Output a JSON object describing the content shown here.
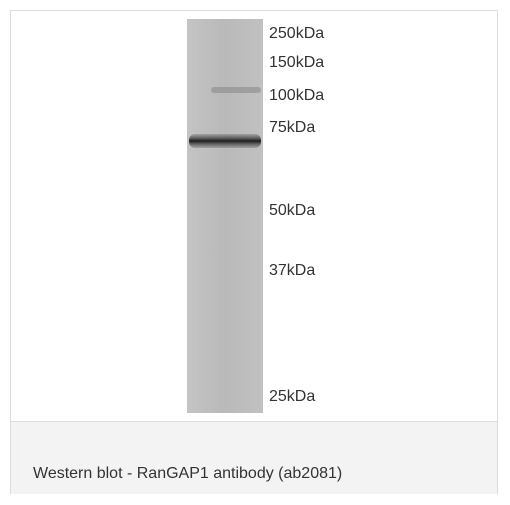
{
  "figure": {
    "markers": [
      "250kDa",
      "150kDa",
      "100kDa",
      "75kDa",
      "50kDa",
      "37kDa",
      "25kDa"
    ],
    "caption": "Western blot - RanGAP1 antibody (ab2081)"
  }
}
